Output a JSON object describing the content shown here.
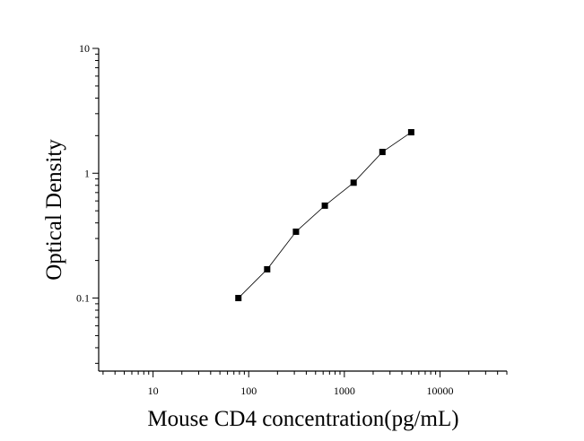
{
  "chart_data": {
    "type": "scatter",
    "xlabel": "Mouse CD4 concentration(pg/mL)",
    "ylabel": "Optical Density",
    "x_scale": "log",
    "y_scale": "log",
    "xlim": [
      2.7,
      50000
    ],
    "ylim": [
      0.026,
      10
    ],
    "x_ticks": [
      {
        "value": 10,
        "label": "10"
      },
      {
        "value": 100,
        "label": "100"
      },
      {
        "value": 1000,
        "label": "1000"
      },
      {
        "value": 10000,
        "label": "10000"
      }
    ],
    "y_ticks": [
      {
        "value": 0.1,
        "label": "0.1"
      },
      {
        "value": 1,
        "label": "1"
      },
      {
        "value": 10,
        "label": "10"
      }
    ],
    "grid": false,
    "series": [
      {
        "x": [
          78,
          156,
          312,
          625,
          1250,
          2500,
          5000
        ],
        "y": [
          0.1,
          0.17,
          0.34,
          0.55,
          0.84,
          1.48,
          2.13
        ]
      }
    ]
  }
}
